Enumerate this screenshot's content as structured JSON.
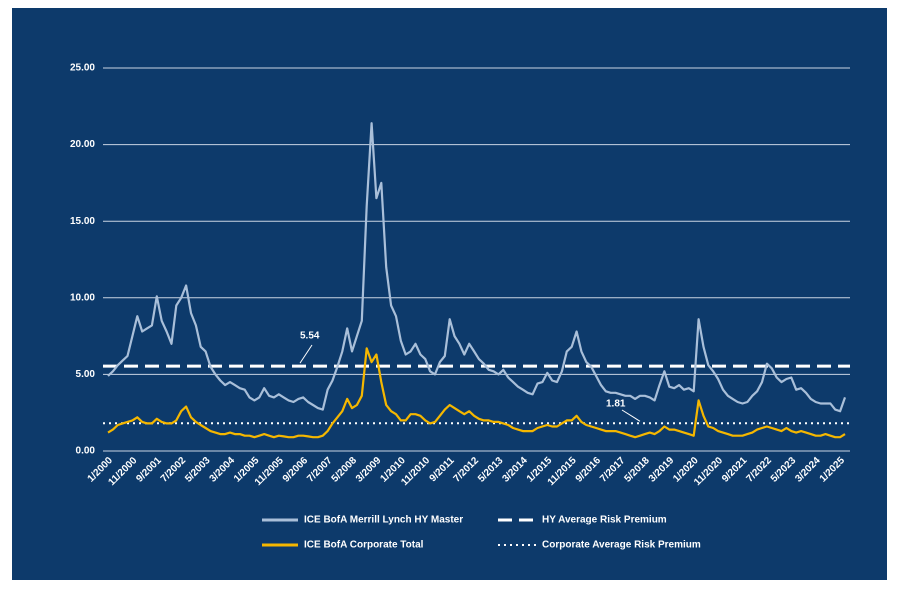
{
  "chart_data": {
    "type": "line",
    "categories": [
      "1/2000",
      null,
      null,
      null,
      null,
      "11/2000",
      null,
      null,
      null,
      null,
      "9/2001",
      null,
      null,
      null,
      null,
      "7/2002",
      null,
      null,
      null,
      null,
      "5/2003",
      null,
      null,
      null,
      null,
      "3/2004",
      null,
      null,
      null,
      null,
      "1/2005",
      null,
      null,
      null,
      null,
      "11/2005",
      null,
      null,
      null,
      null,
      "9/2006",
      null,
      null,
      null,
      null,
      "7/2007",
      null,
      null,
      null,
      null,
      "5/2008",
      null,
      null,
      null,
      null,
      "3/2009",
      null,
      null,
      null,
      null,
      "1/2010",
      null,
      null,
      null,
      null,
      "11/2010",
      null,
      null,
      null,
      null,
      "9/2011",
      null,
      null,
      null,
      null,
      "7/2012",
      null,
      null,
      null,
      null,
      "5/2013",
      null,
      null,
      null,
      null,
      "3/2014",
      null,
      null,
      null,
      null,
      "1/2015",
      null,
      null,
      null,
      null,
      "11/2015",
      null,
      null,
      null,
      null,
      "9/2016",
      null,
      null,
      null,
      null,
      "7/2017",
      null,
      null,
      null,
      null,
      "5/2018",
      null,
      null,
      null,
      null,
      "3/2019",
      null,
      null,
      null,
      null,
      "1/2020",
      null,
      null,
      null,
      null,
      "11/2020",
      null,
      null,
      null,
      null,
      "9/2021",
      null,
      null,
      null,
      null,
      "7/2022",
      null,
      null,
      null,
      null,
      "5/2023",
      null,
      null,
      null,
      null,
      "3/2024",
      null,
      null,
      null,
      null,
      "1/2025",
      null
    ],
    "series": [
      {
        "name": "ICE BofA Merrill Lynch HY Master",
        "color": "#a9bfd9",
        "values": [
          4.9,
          5.2,
          5.6,
          5.9,
          6.2,
          7.5,
          8.8,
          7.8,
          8.0,
          8.2,
          10.1,
          8.5,
          7.8,
          7.0,
          9.5,
          10.0,
          10.8,
          9.0,
          8.2,
          6.8,
          6.5,
          5.5,
          5.0,
          4.6,
          4.3,
          4.5,
          4.3,
          4.1,
          4.0,
          3.5,
          3.3,
          3.5,
          4.1,
          3.6,
          3.5,
          3.7,
          3.5,
          3.3,
          3.2,
          3.4,
          3.5,
          3.2,
          3.0,
          2.8,
          2.7,
          4.0,
          4.6,
          5.5,
          6.5,
          8.0,
          6.5,
          7.5,
          8.5,
          16.0,
          21.4,
          16.5,
          17.5,
          12.0,
          9.5,
          8.8,
          7.2,
          6.3,
          6.5,
          7.0,
          6.3,
          6.0,
          5.2,
          5.0,
          5.8,
          6.2,
          8.6,
          7.5,
          7.0,
          6.3,
          7.0,
          6.5,
          6.0,
          5.7,
          5.3,
          5.2,
          5.0,
          5.3,
          4.8,
          4.5,
          4.2,
          4.0,
          3.8,
          3.7,
          4.4,
          4.5,
          5.1,
          4.6,
          4.5,
          5.2,
          6.5,
          6.8,
          7.8,
          6.5,
          5.8,
          5.5,
          4.9,
          4.3,
          3.9,
          3.8,
          3.8,
          3.7,
          3.6,
          3.6,
          3.4,
          3.6,
          3.6,
          3.5,
          3.3,
          4.3,
          5.2,
          4.2,
          4.1,
          4.3,
          4.0,
          4.1,
          3.9,
          8.6,
          6.8,
          5.6,
          5.2,
          4.7,
          4.0,
          3.6,
          3.4,
          3.2,
          3.1,
          3.2,
          3.6,
          3.9,
          4.5,
          5.7,
          5.4,
          4.8,
          4.5,
          4.7,
          4.8,
          4.0,
          4.1,
          3.8,
          3.4,
          3.2,
          3.1,
          3.1,
          3.1,
          2.7,
          2.6,
          3.5
        ]
      },
      {
        "name": "ICE BofA Corporate Total",
        "color": "#f5b700",
        "values": [
          1.2,
          1.4,
          1.7,
          1.8,
          1.9,
          2.0,
          2.2,
          1.9,
          1.8,
          1.8,
          2.1,
          1.9,
          1.8,
          1.8,
          2.0,
          2.6,
          2.9,
          2.2,
          1.9,
          1.7,
          1.5,
          1.3,
          1.2,
          1.1,
          1.1,
          1.2,
          1.1,
          1.1,
          1.0,
          1.0,
          0.9,
          1.0,
          1.1,
          1.0,
          0.9,
          1.0,
          0.95,
          0.9,
          0.9,
          1.0,
          1.0,
          0.95,
          0.9,
          0.9,
          1.0,
          1.3,
          1.8,
          2.2,
          2.6,
          3.4,
          2.8,
          3.0,
          3.6,
          6.7,
          5.8,
          6.3,
          4.5,
          3.0,
          2.6,
          2.4,
          2.0,
          2.0,
          2.4,
          2.4,
          2.3,
          2.0,
          1.8,
          1.9,
          2.3,
          2.7,
          3.0,
          2.8,
          2.6,
          2.4,
          2.6,
          2.3,
          2.1,
          2.0,
          2.0,
          1.9,
          1.9,
          1.8,
          1.7,
          1.5,
          1.4,
          1.3,
          1.3,
          1.3,
          1.5,
          1.6,
          1.7,
          1.6,
          1.6,
          1.8,
          2.0,
          2.0,
          2.3,
          1.9,
          1.7,
          1.6,
          1.5,
          1.4,
          1.3,
          1.3,
          1.3,
          1.2,
          1.1,
          1.0,
          0.9,
          1.0,
          1.1,
          1.2,
          1.1,
          1.3,
          1.6,
          1.4,
          1.4,
          1.3,
          1.2,
          1.1,
          1.0,
          3.3,
          2.3,
          1.6,
          1.5,
          1.3,
          1.2,
          1.1,
          1.0,
          1.0,
          1.0,
          1.1,
          1.2,
          1.4,
          1.5,
          1.6,
          1.5,
          1.4,
          1.3,
          1.5,
          1.3,
          1.2,
          1.3,
          1.2,
          1.1,
          1.0,
          1.0,
          1.1,
          1.0,
          0.9,
          0.9,
          1.1
        ]
      }
    ],
    "reference_lines": [
      {
        "name": "HY Average Risk Premium",
        "value": 5.54,
        "style": "dashed",
        "color": "#ffffff"
      },
      {
        "name": "Corporate Average Risk Premium",
        "value": 1.81,
        "style": "dotted",
        "color": "#ffffff"
      }
    ],
    "ylim": [
      0,
      25
    ],
    "yticks": [
      {
        "value": 0,
        "label": "0.00"
      },
      {
        "value": 5,
        "label": "5.00"
      },
      {
        "value": 10,
        "label": "10.00"
      },
      {
        "value": 15,
        "label": "15.00"
      },
      {
        "value": 20,
        "label": "20.00"
      },
      {
        "value": 25,
        "label": "25.00"
      }
    ],
    "grid": true
  }
}
